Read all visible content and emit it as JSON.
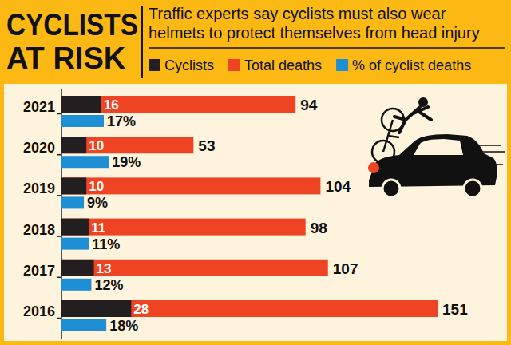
{
  "chart_data": {
    "type": "bar",
    "orientation": "horizontal",
    "title": "CYCLISTS AT RISK",
    "subtitle": "Traffic experts say cyclists must also wear helmets to protect themselves from head injury",
    "categories": [
      "2021",
      "2020",
      "2019",
      "2018",
      "2017",
      "2016"
    ],
    "series": [
      {
        "name": "Cyclists",
        "color": "#231f20",
        "values": [
          16,
          10,
          10,
          11,
          13,
          28
        ]
      },
      {
        "name": "Total deaths",
        "color": "#ef4423",
        "values": [
          94,
          53,
          104,
          98,
          107,
          151
        ]
      },
      {
        "name": "% of cyclist deaths",
        "color": "#1e8fd5",
        "values": [
          17,
          19,
          9,
          11,
          12,
          18
        ],
        "value_labels": [
          "17%",
          "19%",
          "9%",
          "11%",
          "12%",
          "18%"
        ]
      }
    ],
    "xlim": [
      0,
      151
    ],
    "tick_labels": "y",
    "data_labels": true,
    "legend": "top"
  }
}
